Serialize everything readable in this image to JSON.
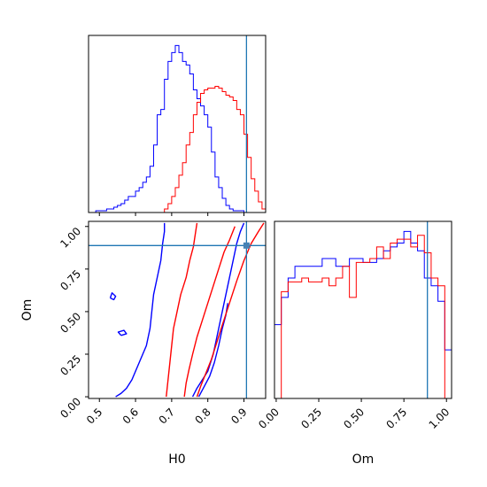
{
  "chart_data": [
    {
      "type": "step-histogram",
      "panel": "H0 marginal",
      "x_range": [
        0.47,
        0.96
      ],
      "bins": [
        0.47,
        0.48,
        0.49,
        0.5,
        0.51,
        0.52,
        0.53,
        0.54,
        0.55,
        0.56,
        0.57,
        0.58,
        0.59,
        0.6,
        0.61,
        0.62,
        0.63,
        0.64,
        0.65,
        0.66,
        0.67,
        0.68,
        0.69,
        0.7,
        0.71,
        0.72,
        0.73,
        0.74,
        0.75,
        0.76,
        0.77,
        0.78,
        0.79,
        0.8,
        0.81,
        0.82,
        0.83,
        0.84,
        0.85,
        0.86,
        0.87,
        0.88,
        0.89,
        0.9,
        0.91,
        0.92,
        0.93,
        0.94,
        0.95,
        0.96
      ],
      "series": [
        {
          "color": "#0000ff",
          "values": [
            0,
            0,
            1,
            1,
            1,
            2,
            2,
            3,
            4,
            5,
            7,
            9,
            9,
            12,
            14,
            17,
            20,
            26,
            38,
            55,
            58,
            75,
            85,
            90,
            94,
            90,
            85,
            83,
            78,
            69,
            64,
            60,
            55,
            48,
            34,
            20,
            14,
            8,
            4,
            2,
            1,
            1,
            1,
            0,
            0,
            0,
            0,
            0,
            0
          ]
        },
        {
          "color": "#ff0000",
          "values": [
            0,
            0,
            0,
            0,
            0,
            0,
            0,
            0,
            0,
            0,
            0,
            0,
            0,
            0,
            0,
            0,
            0,
            0,
            0,
            0,
            0,
            2,
            5,
            9,
            14,
            21,
            28,
            38,
            45,
            55,
            62,
            67,
            69,
            70,
            70,
            71,
            70,
            68,
            66,
            65,
            63,
            58,
            55,
            44,
            31,
            19,
            12,
            6,
            2
          ]
        }
      ],
      "truth_line": {
        "x": 0.907
      }
    },
    {
      "type": "contour",
      "panel": "H0 vs Om joint",
      "xlabel": "H0",
      "ylabel": "Om",
      "x_range": [
        0.47,
        0.96
      ],
      "y_range": [
        -0.01,
        1.03
      ],
      "x_ticks": [
        0.5,
        0.6,
        0.7,
        0.8,
        0.9
      ],
      "x_tick_labels": [
        "0.5",
        "0.6",
        "0.7",
        "0.8",
        "0.9"
      ],
      "y_ticks": [
        0.0,
        0.25,
        0.5,
        0.75,
        1.0
      ],
      "y_tick_labels": [
        "0.00",
        "0.25",
        "0.50",
        "0.75",
        "1.00"
      ],
      "truth_point": {
        "x": 0.907,
        "y": 0.888
      },
      "series": [
        {
          "color": "#0000ff",
          "contours": [
            [
              [
                0.545,
                0.0
              ],
              [
                0.56,
                0.02
              ],
              [
                0.575,
                0.05
              ],
              [
                0.59,
                0.1
              ],
              [
                0.6,
                0.15
              ],
              [
                0.61,
                0.2
              ],
              [
                0.62,
                0.25
              ],
              [
                0.63,
                0.3
              ],
              [
                0.635,
                0.35
              ],
              [
                0.64,
                0.4
              ],
              [
                0.645,
                0.5
              ],
              [
                0.65,
                0.6
              ],
              [
                0.66,
                0.7
              ],
              [
                0.67,
                0.8
              ],
              [
                0.675,
                0.9
              ],
              [
                0.68,
                0.97
              ],
              [
                0.68,
                1.02
              ]
            ],
            [
              [
                0.758,
                0.0
              ],
              [
                0.77,
                0.05
              ],
              [
                0.785,
                0.1
              ],
              [
                0.8,
                0.15
              ],
              [
                0.815,
                0.25
              ],
              [
                0.825,
                0.35
              ],
              [
                0.84,
                0.5
              ],
              [
                0.855,
                0.65
              ],
              [
                0.87,
                0.8
              ],
              [
                0.88,
                0.9
              ],
              [
                0.89,
                0.97
              ],
              [
                0.9,
                1.02
              ]
            ],
            [
              [
                0.775,
                0.0
              ],
              [
                0.79,
                0.06
              ],
              [
                0.805,
                0.12
              ],
              [
                0.818,
                0.2
              ],
              [
                0.83,
                0.3
              ],
              [
                0.84,
                0.4
              ],
              [
                0.85,
                0.48
              ],
              [
                0.855,
                0.55
              ]
            ],
            [
              [
                0.56,
                0.36
              ],
              [
                0.575,
                0.37
              ],
              [
                0.568,
                0.39
              ],
              [
                0.552,
                0.38
              ],
              [
                0.56,
                0.36
              ]
            ],
            [
              [
                0.53,
                0.58
              ],
              [
                0.54,
                0.57
              ],
              [
                0.545,
                0.59
              ],
              [
                0.535,
                0.61
              ],
              [
                0.53,
                0.58
              ]
            ]
          ]
        },
        {
          "color": "#ff0000",
          "contours": [
            [
              [
                0.685,
                0.0
              ],
              [
                0.69,
                0.1
              ],
              [
                0.695,
                0.2
              ],
              [
                0.7,
                0.3
              ],
              [
                0.705,
                0.4
              ],
              [
                0.715,
                0.5
              ],
              [
                0.725,
                0.6
              ],
              [
                0.74,
                0.7
              ],
              [
                0.75,
                0.8
              ],
              [
                0.76,
                0.88
              ],
              [
                0.765,
                0.95
              ],
              [
                0.77,
                1.02
              ]
            ],
            [
              [
                0.735,
                0.0
              ],
              [
                0.74,
                0.08
              ],
              [
                0.748,
                0.16
              ],
              [
                0.758,
                0.25
              ],
              [
                0.77,
                0.35
              ],
              [
                0.785,
                0.45
              ],
              [
                0.8,
                0.55
              ],
              [
                0.815,
                0.65
              ],
              [
                0.83,
                0.75
              ],
              [
                0.845,
                0.85
              ],
              [
                0.86,
                0.92
              ],
              [
                0.875,
                1.0
              ]
            ],
            [
              [
                0.77,
                0.0
              ],
              [
                0.78,
                0.06
              ],
              [
                0.795,
                0.14
              ],
              [
                0.81,
                0.22
              ],
              [
                0.825,
                0.32
              ],
              [
                0.84,
                0.42
              ],
              [
                0.86,
                0.55
              ],
              [
                0.88,
                0.68
              ],
              [
                0.9,
                0.8
              ],
              [
                0.92,
                0.9
              ],
              [
                0.94,
                0.97
              ],
              [
                0.955,
                1.02
              ]
            ]
          ]
        }
      ]
    },
    {
      "type": "step-histogram",
      "panel": "Om marginal",
      "xlabel": "Om",
      "x_range": [
        -0.01,
        1.03
      ],
      "x_ticks": [
        0.0,
        0.25,
        0.5,
        0.75,
        1.0
      ],
      "x_tick_labels": [
        "0.00",
        "0.25",
        "0.50",
        "0.75",
        "1.00"
      ],
      "bins": [
        -0.01,
        0.03,
        0.07,
        0.11,
        0.15,
        0.19,
        0.23,
        0.27,
        0.31,
        0.35,
        0.39,
        0.43,
        0.47,
        0.51,
        0.55,
        0.59,
        0.63,
        0.67,
        0.71,
        0.75,
        0.79,
        0.83,
        0.87,
        0.91,
        0.95,
        0.99,
        1.03
      ],
      "series": [
        {
          "color": "#0000ff",
          "values": [
            38,
            52,
            62,
            68,
            68,
            68,
            68,
            72,
            72,
            68,
            68,
            72,
            72,
            70,
            70,
            72,
            76,
            78,
            80,
            86,
            80,
            76,
            62,
            58,
            50,
            25
          ]
        },
        {
          "color": "#ff0000",
          "values": [
            0,
            55,
            60,
            60,
            62,
            60,
            60,
            62,
            58,
            62,
            68,
            52,
            70,
            70,
            72,
            78,
            72,
            80,
            82,
            82,
            78,
            84,
            75,
            62,
            58,
            0
          ]
        }
      ],
      "truth_line": {
        "x": 0.888
      }
    }
  ]
}
